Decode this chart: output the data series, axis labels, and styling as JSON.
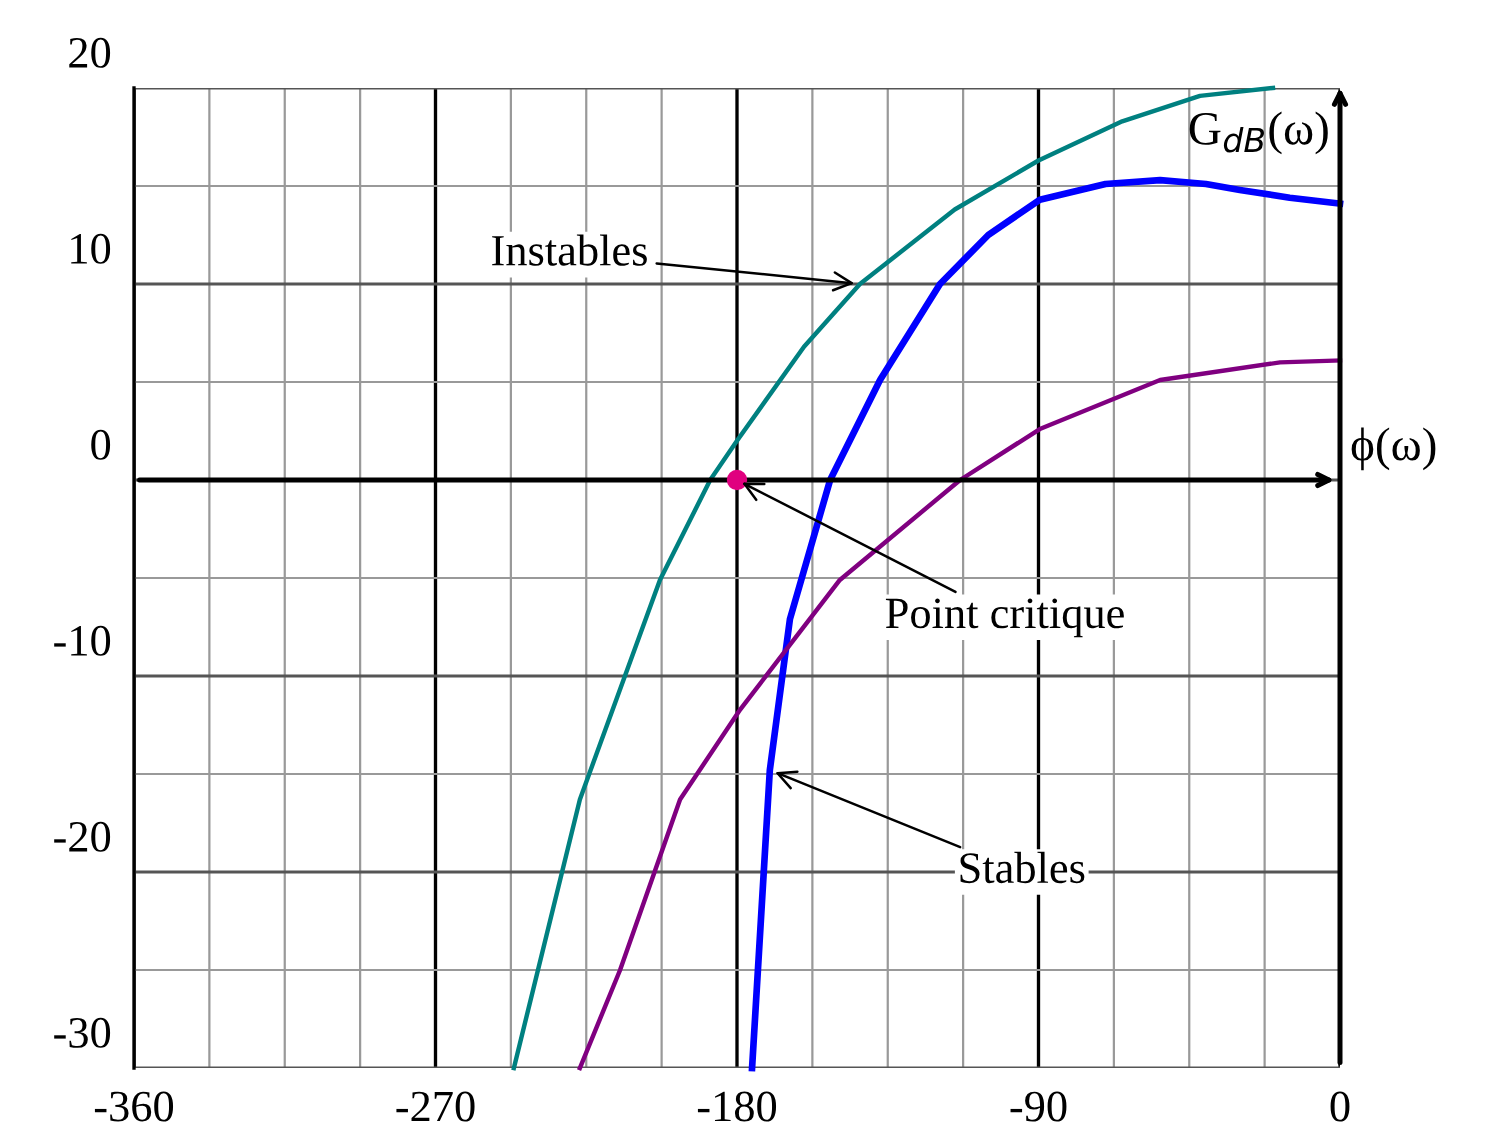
{
  "chart_data": {
    "type": "line",
    "xlabel": "ϕ(ω)",
    "ylabel": "G$_{dB}$(ω)",
    "xlim": [
      -360,
      0
    ],
    "ylim": [
      -30,
      20
    ],
    "xticks": [
      -360,
      {
        "value": -337.5,
        "label": null
      },
      {
        "value": -315,
        "label": null
      },
      {
        "value": -292.5,
        "label": null
      },
      -270,
      {
        "value": -247.5,
        "label": null
      },
      {
        "value": -225,
        "label": null
      },
      {
        "value": -202.5,
        "label": null
      },
      -180,
      {
        "value": -157.5,
        "label": null
      },
      {
        "value": -135,
        "label": null
      },
      {
        "value": -112.5,
        "label": null
      },
      -90,
      {
        "value": -67.5,
        "label": null
      },
      {
        "value": -45,
        "label": null
      },
      {
        "value": -22.5,
        "label": null
      },
      0
    ],
    "yticks": [
      -30,
      {
        "value": -25,
        "label": null
      },
      -20,
      {
        "value": -15,
        "label": null
      },
      -10,
      {
        "value": -5,
        "label": null
      },
      0,
      {
        "value": 5,
        "label": null
      },
      10,
      {
        "value": 15,
        "label": null
      },
      20
    ],
    "grid": true,
    "marker": "none",
    "line_style": "solid",
    "series": [
      {
        "color": "#008080",
        "x": [
          -246.6,
          -226.9,
          -203,
          -188,
          -180,
          -160,
          -143.3,
          -115,
          -90,
          -65,
          -41.8,
          -20
        ],
        "values": [
          -30,
          -16.3,
          -5.1,
          0,
          2,
          6.8,
          10,
          13.8,
          16.3,
          18.3,
          19.6,
          20
        ]
      },
      {
        "color": "#0000ff",
        "x": [
          -175.5,
          -170.2,
          -164.2,
          -152.2,
          -137.3,
          -119.4,
          -105,
          -89.6,
          -70,
          -53.7,
          -40,
          -29.9,
          -15,
          0
        ],
        "values": [
          -30,
          -14.8,
          -7.1,
          0,
          5.1,
          10,
          12.5,
          14.3,
          15.1,
          15.3,
          15.1,
          14.8,
          14.4,
          14.1
        ]
      },
      {
        "color": "#800080",
        "x": [
          -226.9,
          -214.9,
          -197,
          -179,
          -149.3,
          -113.4,
          -89.6,
          -53.7,
          -17.9,
          0
        ],
        "values": [
          -30,
          -25,
          -16.3,
          -11.7,
          -5.1,
          0,
          2.6,
          5.1,
          6,
          6.1
        ]
      },
      {
        "type": "scatter",
        "marker": "circle",
        "color": "#e0007f",
        "x": [
          -180
        ],
        "values": [
          0
        ]
      }
    ],
    "annotations": [
      {
        "text": "Instables",
        "x": -143.3,
        "y": 10
      },
      {
        "text": "Point critique",
        "x": -180,
        "y": 0
      },
      {
        "text": "Stables",
        "x": -170.2,
        "y": -14.8
      }
    ]
  }
}
